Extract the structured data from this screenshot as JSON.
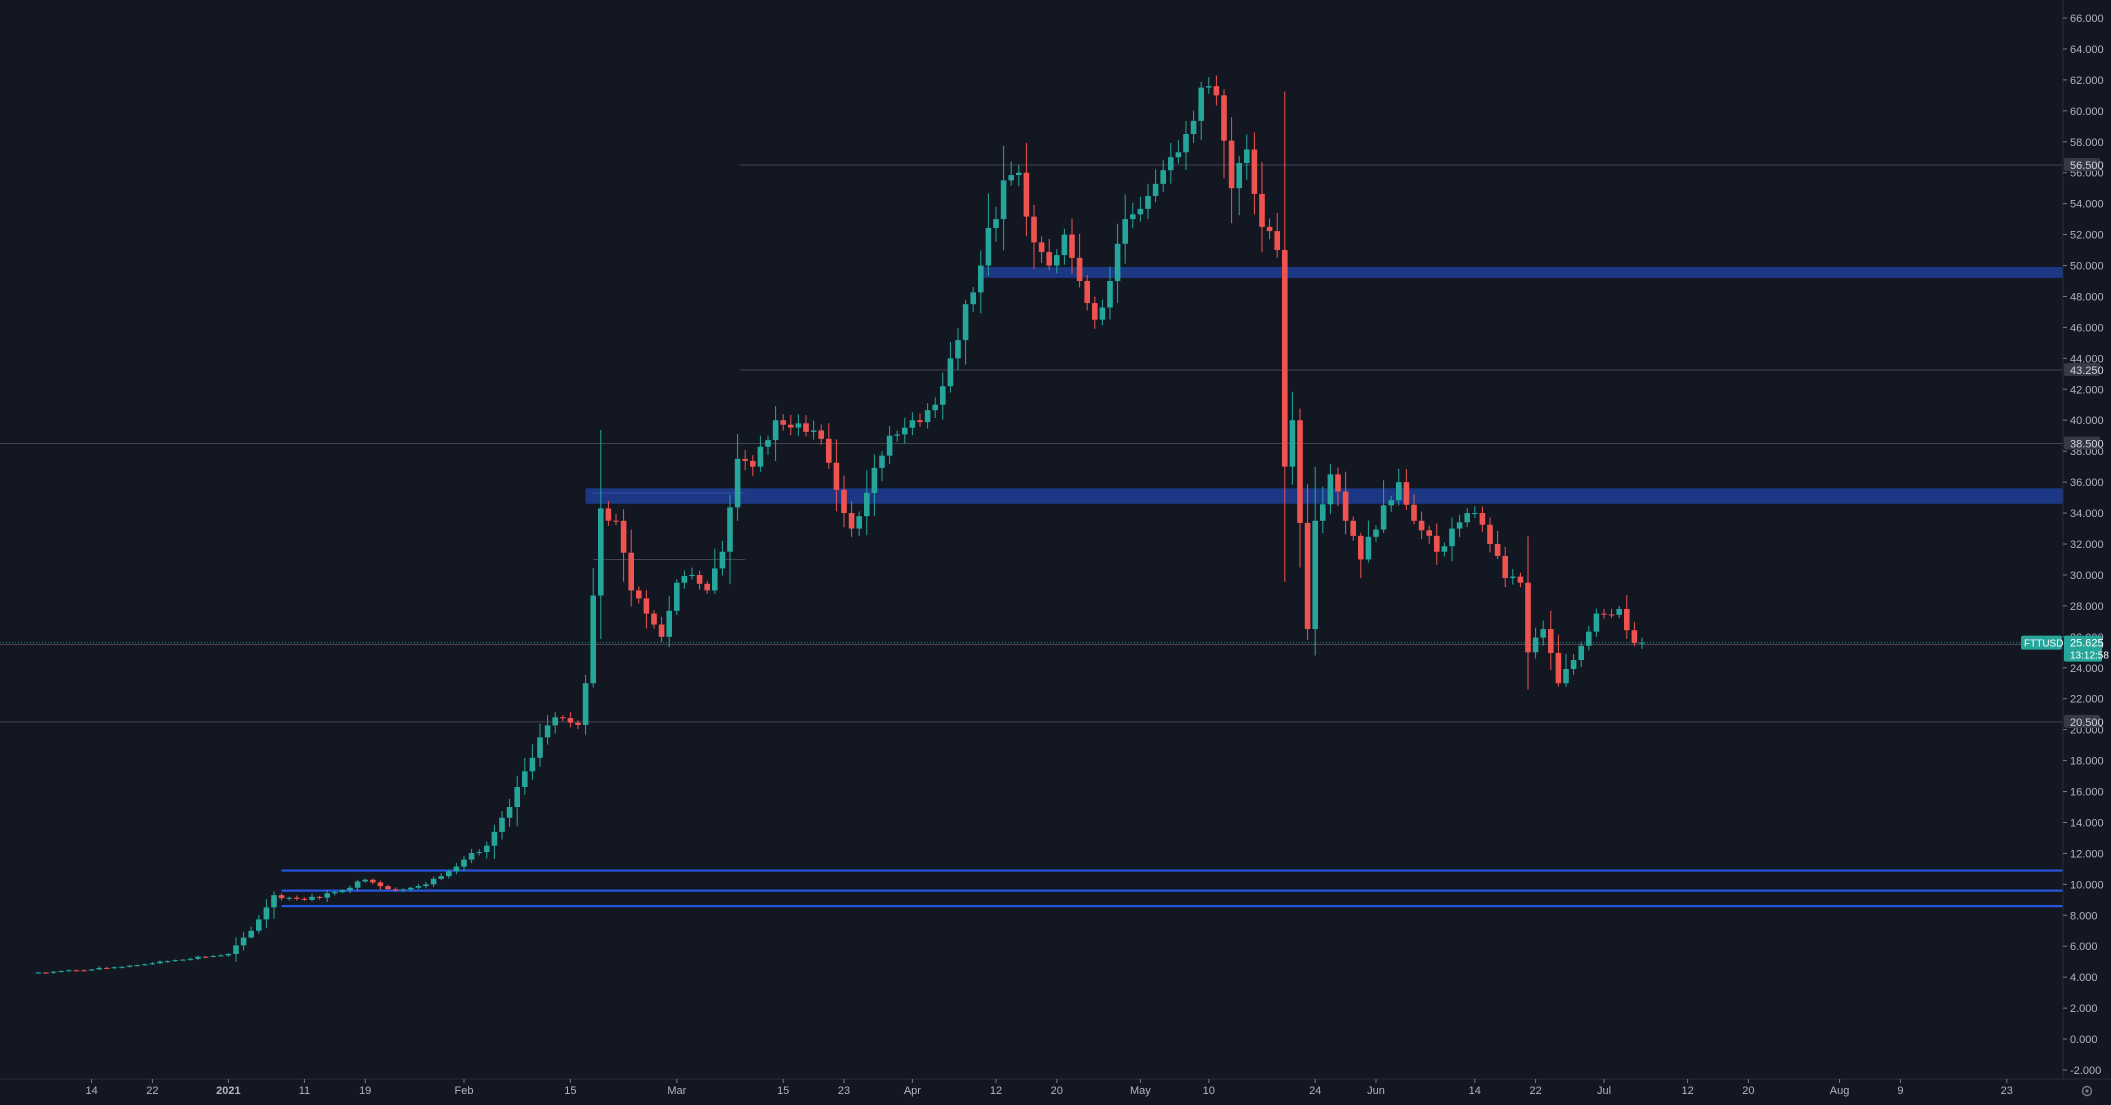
{
  "chart_data": {
    "type": "candlestick",
    "symbol": "FTTUSD",
    "last_price": "25.625",
    "countdown": "13:12:58",
    "ylim": [
      -2,
      66
    ],
    "y_ticks": [
      "66.000",
      "64.000",
      "62.000",
      "60.000",
      "58.000",
      "56.000",
      "54.000",
      "52.000",
      "50.000",
      "48.000",
      "46.000",
      "44.000",
      "42.000",
      "40.000",
      "38.000",
      "36.000",
      "34.000",
      "32.000",
      "30.000",
      "28.000",
      "26.000",
      "24.000",
      "22.000",
      "20.000",
      "18.000",
      "16.000",
      "14.000",
      "12.000",
      "10.000",
      "8.000",
      "6.000",
      "4.000",
      "2.000",
      "0.000",
      "-2.000"
    ],
    "x_ticks": [
      {
        "label": "14",
        "date": "2020-12-14"
      },
      {
        "label": "22",
        "date": "2020-12-22"
      },
      {
        "label": "2021",
        "date": "2021-01-01"
      },
      {
        "label": "11",
        "date": "2021-01-11"
      },
      {
        "label": "19",
        "date": "2021-01-19"
      },
      {
        "label": "Feb",
        "date": "2021-02-01"
      },
      {
        "label": "15",
        "date": "2021-02-15"
      },
      {
        "label": "Mar",
        "date": "2021-03-01"
      },
      {
        "label": "15",
        "date": "2021-03-15"
      },
      {
        "label": "23",
        "date": "2021-03-23"
      },
      {
        "label": "Apr",
        "date": "2021-04-01"
      },
      {
        "label": "12",
        "date": "2021-04-12"
      },
      {
        "label": "20",
        "date": "2021-04-20"
      },
      {
        "label": "May",
        "date": "2021-05-01"
      },
      {
        "label": "10",
        "date": "2021-05-10"
      },
      {
        "label": "24",
        "date": "2021-05-24"
      },
      {
        "label": "Jun",
        "date": "2021-06-01"
      },
      {
        "label": "14",
        "date": "2021-06-14"
      },
      {
        "label": "22",
        "date": "2021-06-22"
      },
      {
        "label": "Jul",
        "date": "2021-07-01"
      },
      {
        "label": "12",
        "date": "2021-07-12"
      },
      {
        "label": "20",
        "date": "2021-07-20"
      },
      {
        "label": "Aug",
        "date": "2021-08-01"
      },
      {
        "label": "9",
        "date": "2021-08-09"
      },
      {
        "label": "23",
        "date": "2021-08-23"
      }
    ],
    "price_labels": [
      "56.500",
      "43.250",
      "38.500",
      "25.500",
      "20.500"
    ],
    "horizontal_levels": [
      56.5,
      43.25,
      38.5,
      25.5,
      20.5
    ],
    "zones": [
      {
        "from": 49.2,
        "to": 49.9
      },
      {
        "from": 34.6,
        "to": 35.6
      }
    ],
    "thin_levels": [
      10.9,
      9.6,
      8.6
    ],
    "short_lines": [
      {
        "y": 35.3,
        "start": "2021-02-18",
        "end": "2021-03-10"
      },
      {
        "y": 31.0,
        "start": "2021-02-18",
        "end": "2021-03-10"
      }
    ],
    "anchors": [
      {
        "date": "2020-12-07",
        "price": 4.3
      },
      {
        "date": "2020-12-14",
        "price": 4.5
      },
      {
        "date": "2020-12-22",
        "price": 4.9
      },
      {
        "date": "2021-01-01",
        "price": 5.5
      },
      {
        "date": "2021-01-04",
        "price": 7.0
      },
      {
        "date": "2021-01-07",
        "price": 9.3
      },
      {
        "date": "2021-01-11",
        "price": 9.0
      },
      {
        "date": "2021-01-15",
        "price": 9.5
      },
      {
        "date": "2021-01-19",
        "price": 10.3
      },
      {
        "date": "2021-01-23",
        "price": 9.6
      },
      {
        "date": "2021-01-27",
        "price": 10.0
      },
      {
        "date": "2021-02-01",
        "price": 11.6
      },
      {
        "date": "2021-02-04",
        "price": 12.5
      },
      {
        "date": "2021-02-07",
        "price": 15.0
      },
      {
        "date": "2021-02-11",
        "price": 19.5
      },
      {
        "date": "2021-02-13",
        "price": 20.8
      },
      {
        "date": "2021-02-16",
        "price": 20.3
      },
      {
        "date": "2021-02-17",
        "price": 23.0
      },
      {
        "date": "2021-02-19",
        "price": 34.3
      },
      {
        "date": "2021-02-21",
        "price": 33.5
      },
      {
        "date": "2021-02-23",
        "price": 29.0
      },
      {
        "date": "2021-02-25",
        "price": 27.5
      },
      {
        "date": "2021-02-27",
        "price": 26.0
      },
      {
        "date": "2021-03-01",
        "price": 29.5
      },
      {
        "date": "2021-03-03",
        "price": 30.0
      },
      {
        "date": "2021-03-05",
        "price": 29.0
      },
      {
        "date": "2021-03-07",
        "price": 31.5
      },
      {
        "date": "2021-03-09",
        "price": 37.5
      },
      {
        "date": "2021-03-11",
        "price": 37.0
      },
      {
        "date": "2021-03-14",
        "price": 40.0
      },
      {
        "date": "2021-03-17",
        "price": 39.8
      },
      {
        "date": "2021-03-20",
        "price": 38.8
      },
      {
        "date": "2021-03-23",
        "price": 34.0
      },
      {
        "date": "2021-03-24",
        "price": 33.0
      },
      {
        "date": "2021-03-26",
        "price": 35.3
      },
      {
        "date": "2021-03-29",
        "price": 39.0
      },
      {
        "date": "2021-04-01",
        "price": 40.0
      },
      {
        "date": "2021-04-04",
        "price": 41.0
      },
      {
        "date": "2021-04-06",
        "price": 44.0
      },
      {
        "date": "2021-04-08",
        "price": 47.5
      },
      {
        "date": "2021-04-10",
        "price": 50.0
      },
      {
        "date": "2021-04-13",
        "price": 55.5
      },
      {
        "date": "2021-04-15",
        "price": 56.0
      },
      {
        "date": "2021-04-17",
        "price": 51.5
      },
      {
        "date": "2021-04-19",
        "price": 50.0
      },
      {
        "date": "2021-04-21",
        "price": 52.0
      },
      {
        "date": "2021-04-23",
        "price": 49.0
      },
      {
        "date": "2021-04-25",
        "price": 46.5
      },
      {
        "date": "2021-04-27",
        "price": 49.0
      },
      {
        "date": "2021-04-29",
        "price": 53.0
      },
      {
        "date": "2021-05-02",
        "price": 54.5
      },
      {
        "date": "2021-05-05",
        "price": 57.0
      },
      {
        "date": "2021-05-07",
        "price": 58.5
      },
      {
        "date": "2021-05-09",
        "price": 61.5
      },
      {
        "date": "2021-05-11",
        "price": 61.0
      },
      {
        "date": "2021-05-13",
        "price": 55.0
      },
      {
        "date": "2021-05-15",
        "price": 57.5
      },
      {
        "date": "2021-05-17",
        "price": 52.5
      },
      {
        "date": "2021-05-19",
        "price": 51.0
      },
      {
        "date": "2021-05-20",
        "price": 37.0
      },
      {
        "date": "2021-05-21",
        "price": 40.0
      },
      {
        "date": "2021-05-23",
        "price": 26.5
      },
      {
        "date": "2021-05-24",
        "price": 33.5
      },
      {
        "date": "2021-05-26",
        "price": 36.5
      },
      {
        "date": "2021-05-28",
        "price": 33.5
      },
      {
        "date": "2021-05-30",
        "price": 31.0
      },
      {
        "date": "2021-06-02",
        "price": 34.5
      },
      {
        "date": "2021-06-04",
        "price": 36.0
      },
      {
        "date": "2021-06-06",
        "price": 33.5
      },
      {
        "date": "2021-06-09",
        "price": 31.5
      },
      {
        "date": "2021-06-11",
        "price": 33.0
      },
      {
        "date": "2021-06-14",
        "price": 34.0
      },
      {
        "date": "2021-06-16",
        "price": 32.0
      },
      {
        "date": "2021-06-18",
        "price": 29.8
      },
      {
        "date": "2021-06-20",
        "price": 29.5
      },
      {
        "date": "2021-06-21",
        "price": 25.0
      },
      {
        "date": "2021-06-23",
        "price": 26.5
      },
      {
        "date": "2021-06-25",
        "price": 23.0
      },
      {
        "date": "2021-06-27",
        "price": 24.5
      },
      {
        "date": "2021-06-30",
        "price": 27.5
      },
      {
        "date": "2021-07-03",
        "price": 27.8
      },
      {
        "date": "2021-07-05",
        "price": 25.6
      },
      {
        "date": "2021-07-06",
        "price": 25.625
      }
    ]
  }
}
